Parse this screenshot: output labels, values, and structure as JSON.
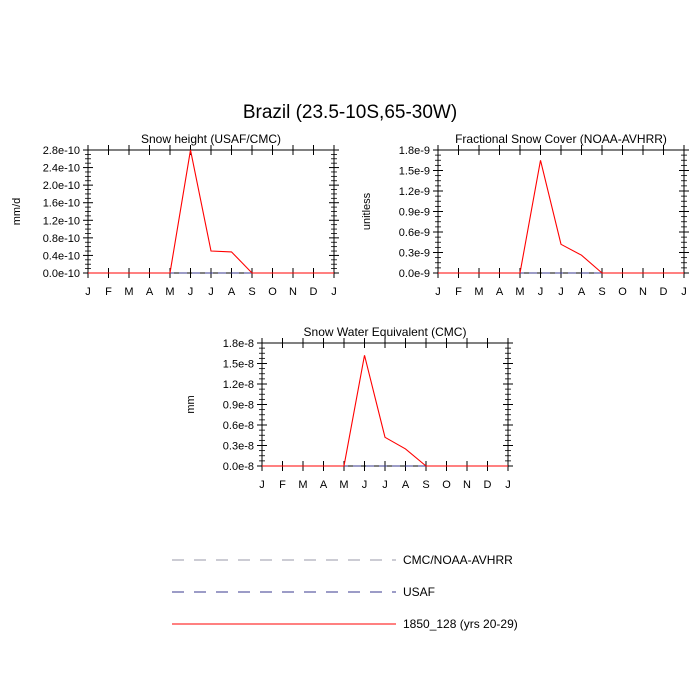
{
  "title": "Brazil (23.5-10S,65-30W)",
  "chart_data": [
    {
      "type": "line",
      "title": "Snow height (USAF/CMC)",
      "xlabel": "",
      "ylabel": "mm/d",
      "categories": [
        "J",
        "F",
        "M",
        "A",
        "M",
        "J",
        "J",
        "A",
        "S",
        "O",
        "N",
        "D",
        "J"
      ],
      "ylim": [
        0,
        2.8e-10
      ],
      "yticks": [
        "0.0e-10",
        "0.4e-10",
        "0.8e-10",
        "1.2e-10",
        "1.6e-10",
        "2.0e-10",
        "2.4e-10",
        "2.8e-10"
      ],
      "series": [
        {
          "name": "CMC/NOAA-AVHRR",
          "color": "#9a9aa8",
          "dash": true,
          "values": [
            0,
            0,
            0,
            0,
            0,
            0,
            0,
            0,
            0,
            0,
            0,
            0,
            0
          ]
        },
        {
          "name": "USAF",
          "color": "#3a3a8f",
          "dash": true,
          "values": [
            0,
            0,
            0,
            0,
            0,
            0,
            0,
            0,
            0,
            0,
            0,
            0,
            0
          ]
        },
        {
          "name": "1850_128 (yrs 20-29)",
          "color": "#ff0000",
          "dash": false,
          "values": [
            0,
            0,
            0,
            0,
            0,
            2.8e-10,
            5e-11,
            4.8e-11,
            0,
            0,
            0,
            0,
            0
          ]
        }
      ]
    },
    {
      "type": "line",
      "title": "Fractional Snow Cover (NOAA-AVHRR)",
      "xlabel": "",
      "ylabel": "unitless",
      "categories": [
        "J",
        "F",
        "M",
        "A",
        "M",
        "J",
        "J",
        "A",
        "S",
        "O",
        "N",
        "D",
        "J"
      ],
      "ylim": [
        0,
        1.8e-09
      ],
      "yticks": [
        "0.0e-9",
        "0.3e-9",
        "0.6e-9",
        "0.9e-9",
        "1.2e-9",
        "1.5e-9",
        "1.8e-9"
      ],
      "series": [
        {
          "name": "CMC/NOAA-AVHRR",
          "color": "#9a9aa8",
          "dash": true,
          "values": [
            0,
            0,
            0,
            0,
            0,
            0,
            0,
            0,
            0,
            0,
            0,
            0,
            0
          ]
        },
        {
          "name": "USAF",
          "color": "#3a3a8f",
          "dash": true,
          "values": [
            0,
            0,
            0,
            0,
            0,
            0,
            0,
            0,
            0,
            0,
            0,
            0,
            0
          ]
        },
        {
          "name": "1850_128 (yrs 20-29)",
          "color": "#ff0000",
          "dash": false,
          "values": [
            0,
            0,
            0,
            0,
            0,
            1.65e-09,
            4.2e-10,
            2.6e-10,
            0,
            0,
            0,
            0,
            0
          ]
        }
      ]
    },
    {
      "type": "line",
      "title": "Snow Water Equivalent (CMC)",
      "xlabel": "",
      "ylabel": "mm",
      "categories": [
        "J",
        "F",
        "M",
        "A",
        "M",
        "J",
        "J",
        "A",
        "S",
        "O",
        "N",
        "D",
        "J"
      ],
      "ylim": [
        0,
        1.8e-08
      ],
      "yticks": [
        "0.0e-8",
        "0.3e-8",
        "0.6e-8",
        "0.9e-8",
        "1.2e-8",
        "1.5e-8",
        "1.8e-8"
      ],
      "series": [
        {
          "name": "CMC/NOAA-AVHRR",
          "color": "#9a9aa8",
          "dash": true,
          "values": [
            0,
            0,
            0,
            0,
            0,
            0,
            0,
            0,
            0,
            0,
            0,
            0,
            0
          ]
        },
        {
          "name": "USAF",
          "color": "#3a3a8f",
          "dash": true,
          "values": [
            0,
            0,
            0,
            0,
            0,
            0,
            0,
            0,
            0,
            0,
            0,
            0,
            0
          ]
        },
        {
          "name": "1850_128 (yrs 20-29)",
          "color": "#ff0000",
          "dash": false,
          "values": [
            0,
            0,
            0,
            0,
            0,
            1.62e-08,
            4.2e-09,
            2.5e-09,
            0,
            0,
            0,
            0,
            0
          ]
        }
      ]
    }
  ],
  "legend": [
    {
      "label": "CMC/NOAA-AVHRR",
      "color": "#9a9aa8",
      "dash": true
    },
    {
      "label": "USAF",
      "color": "#3a3a8f",
      "dash": true
    },
    {
      "label": "1850_128 (yrs 20-29)",
      "color": "#ff0000",
      "dash": false
    }
  ]
}
